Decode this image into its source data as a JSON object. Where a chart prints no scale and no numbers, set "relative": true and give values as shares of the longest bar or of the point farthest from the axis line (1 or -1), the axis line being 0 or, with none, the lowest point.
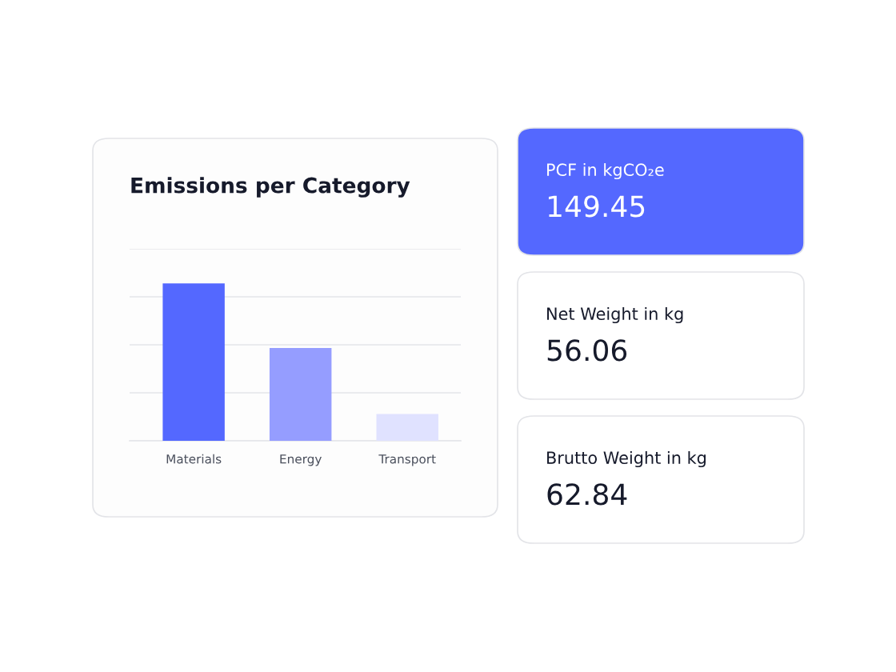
{
  "chart_data": [
    {
      "type": "bar",
      "title": "Emissions per Category",
      "categories": [
        "Materials",
        "Energy",
        "Transport"
      ],
      "values": [
        1,
        0.59,
        0.17
      ],
      "colors": [
        "#5468ff",
        "#959dff",
        "#e0e2ff"
      ],
      "relative": true,
      "grid": "y"
    },
    {
      "type": "other",
      "colors": [
        "#5468ff",
        "#ffffff",
        "#ffffff"
      ],
      "annotations": [
        "PCF in kgCO₂e",
        "149.45",
        "Net Weight in kg",
        "56.06",
        "Brutto Weight in kg",
        "62.84"
      ]
    }
  ]
}
